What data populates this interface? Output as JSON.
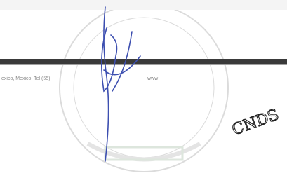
{
  "footer": {
    "address": "exico, Mexico. Tel (55)",
    "web": "www"
  },
  "annotation": "CNDS"
}
